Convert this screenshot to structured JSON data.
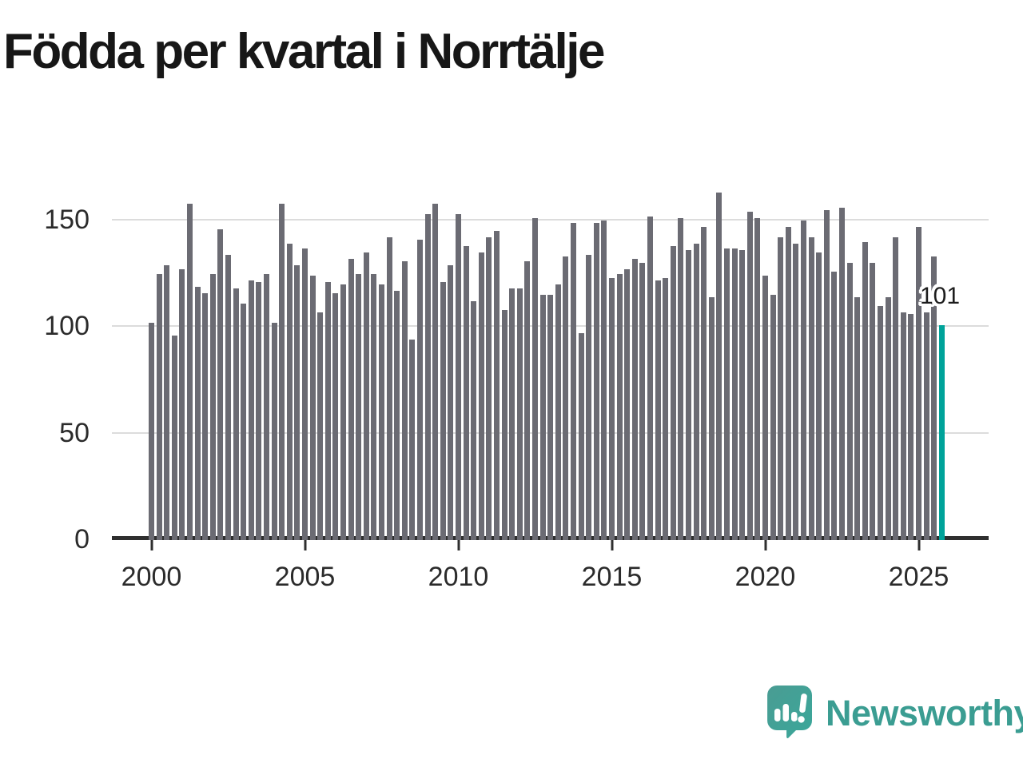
{
  "title": "Födda per kvartal i Norrtälje",
  "annotation": {
    "label": "101"
  },
  "logo": {
    "text": "Newsworthy"
  },
  "colors": {
    "bar": "#6b6b73",
    "highlight": "#00a39a",
    "logo_teal": "#3b9d92",
    "grid": "#dcdcdc",
    "axis": "#2f2f2f",
    "title_text": "#171717"
  },
  "chart_data": {
    "type": "bar",
    "title": "Födda per kvartal i Norrtälje",
    "xlabel": "",
    "ylabel": "",
    "y_ticks": [
      0,
      50,
      100,
      150
    ],
    "ylim": [
      0,
      168
    ],
    "grid": true,
    "x_tick_labels": [
      "2000",
      "2005",
      "2010",
      "2015",
      "2020",
      "2025"
    ],
    "highlight_index": 103,
    "highlight_label": "101",
    "categories": [
      "2000-K1",
      "2000-K2",
      "2000-K3",
      "2000-K4",
      "2001-K1",
      "2001-K2",
      "2001-K3",
      "2001-K4",
      "2002-K1",
      "2002-K2",
      "2002-K3",
      "2002-K4",
      "2003-K1",
      "2003-K2",
      "2003-K3",
      "2003-K4",
      "2004-K1",
      "2004-K2",
      "2004-K3",
      "2004-K4",
      "2005-K1",
      "2005-K2",
      "2005-K3",
      "2005-K4",
      "2006-K1",
      "2006-K2",
      "2006-K3",
      "2006-K4",
      "2007-K1",
      "2007-K2",
      "2007-K3",
      "2007-K4",
      "2008-K1",
      "2008-K2",
      "2008-K3",
      "2008-K4",
      "2009-K1",
      "2009-K2",
      "2009-K3",
      "2009-K4",
      "2010-K1",
      "2010-K2",
      "2010-K3",
      "2010-K4",
      "2011-K1",
      "2011-K2",
      "2011-K3",
      "2011-K4",
      "2012-K1",
      "2012-K2",
      "2012-K3",
      "2012-K4",
      "2013-K1",
      "2013-K2",
      "2013-K3",
      "2013-K4",
      "2014-K1",
      "2014-K2",
      "2014-K3",
      "2014-K4",
      "2015-K1",
      "2015-K2",
      "2015-K3",
      "2015-K4",
      "2016-K1",
      "2016-K2",
      "2016-K3",
      "2016-K4",
      "2017-K1",
      "2017-K2",
      "2017-K3",
      "2017-K4",
      "2018-K1",
      "2018-K2",
      "2018-K3",
      "2018-K4",
      "2019-K1",
      "2019-K2",
      "2019-K3",
      "2019-K4",
      "2020-K1",
      "2020-K2",
      "2020-K3",
      "2020-K4",
      "2021-K1",
      "2021-K2",
      "2021-K3",
      "2021-K4",
      "2022-K1",
      "2022-K2",
      "2022-K3",
      "2022-K4",
      "2023-K1",
      "2023-K2",
      "2023-K3",
      "2023-K4",
      "2024-K1",
      "2024-K2",
      "2024-K3",
      "2024-K4",
      "2025-K1",
      "2025-K2",
      "2025-K3",
      "2025-K4"
    ],
    "values": [
      102,
      125,
      129,
      96,
      127,
      158,
      119,
      116,
      125,
      146,
      134,
      118,
      111,
      122,
      121,
      125,
      102,
      158,
      139,
      129,
      137,
      124,
      107,
      121,
      116,
      120,
      132,
      125,
      135,
      125,
      120,
      142,
      117,
      131,
      94,
      141,
      153,
      158,
      121,
      129,
      153,
      138,
      112,
      135,
      142,
      145,
      108,
      118,
      118,
      131,
      151,
      115,
      115,
      120,
      133,
      149,
      97,
      134,
      149,
      150,
      123,
      125,
      127,
      132,
      130,
      152,
      122,
      123,
      138,
      151,
      136,
      139,
      147,
      114,
      163,
      137,
      137,
      136,
      154,
      151,
      124,
      115,
      142,
      147,
      139,
      150,
      142,
      135,
      155,
      126,
      156,
      130,
      114,
      140,
      130,
      110,
      114,
      142,
      107,
      106,
      147,
      107,
      133,
      101
    ]
  }
}
